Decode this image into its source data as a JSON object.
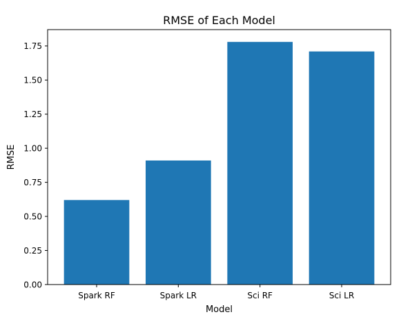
{
  "chart_data": {
    "type": "bar",
    "title": "RMSE of Each Model",
    "xlabel": "Model",
    "ylabel": "RMSE",
    "categories": [
      "Spark RF",
      "Spark LR",
      "Sci RF",
      "Sci LR"
    ],
    "values": [
      0.62,
      0.91,
      1.78,
      1.71
    ],
    "ylim": [
      0,
      1.87
    ],
    "yticks": [
      "0.00",
      "0.25",
      "0.50",
      "0.75",
      "1.00",
      "1.25",
      "1.50",
      "1.75"
    ],
    "grid": false,
    "bar_color": "#1f77b4"
  }
}
